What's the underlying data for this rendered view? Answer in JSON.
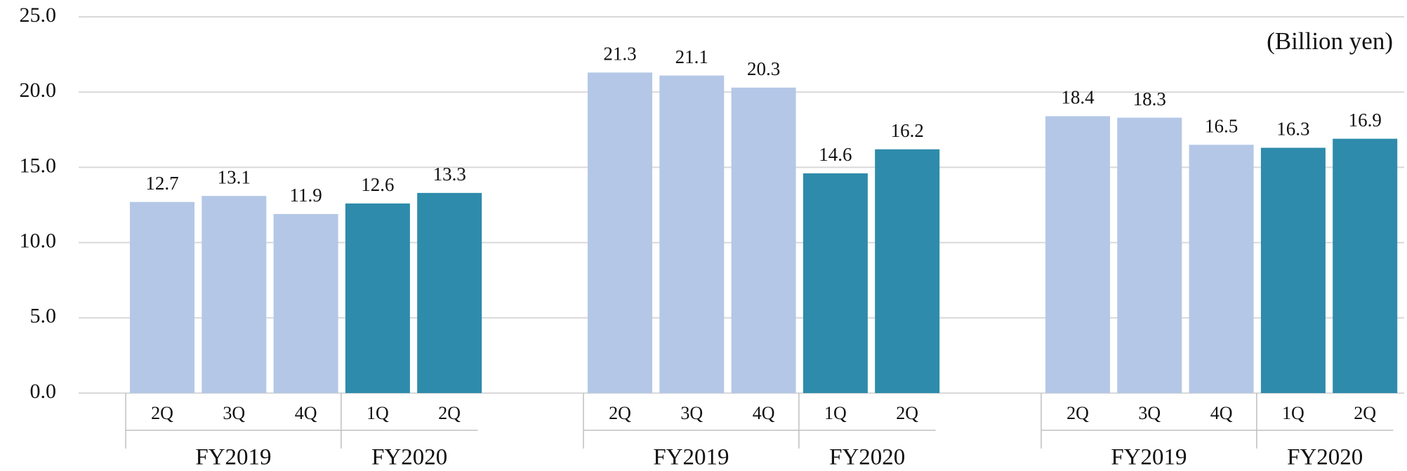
{
  "chart_data": {
    "type": "bar",
    "unit_label": "(Billion yen)",
    "ylim": [
      0,
      25
    ],
    "yticks": [
      {
        "value": 0,
        "label": "0.0"
      },
      {
        "value": 5,
        "label": "5.0"
      },
      {
        "value": 10,
        "label": "10.0"
      },
      {
        "value": 15,
        "label": "15.0"
      },
      {
        "value": 20,
        "label": "20.0"
      },
      {
        "value": 25,
        "label": "25.0"
      }
    ],
    "grid": true,
    "groups": [
      [
        {
          "name": "FY2019",
          "color": "#b4c7e7",
          "categories": [
            "2Q",
            "3Q",
            "4Q"
          ],
          "values": [
            12.7,
            13.1,
            11.9
          ]
        },
        {
          "name": "FY2020",
          "color": "#2e8bab",
          "categories": [
            "1Q",
            "2Q"
          ],
          "values": [
            12.6,
            13.3
          ]
        }
      ],
      [
        {
          "name": "FY2019",
          "color": "#b4c7e7",
          "categories": [
            "2Q",
            "3Q",
            "4Q"
          ],
          "values": [
            21.3,
            21.1,
            20.3
          ]
        },
        {
          "name": "FY2020",
          "color": "#2e8bab",
          "categories": [
            "1Q",
            "2Q"
          ],
          "values": [
            14.6,
            16.2
          ]
        }
      ],
      [
        {
          "name": "FY2019",
          "color": "#b4c7e7",
          "categories": [
            "2Q",
            "3Q",
            "4Q"
          ],
          "values": [
            18.4,
            18.3,
            16.5
          ]
        },
        {
          "name": "FY2020",
          "color": "#2e8bab",
          "categories": [
            "1Q",
            "2Q"
          ],
          "values": [
            16.3,
            16.9
          ]
        }
      ]
    ]
  }
}
